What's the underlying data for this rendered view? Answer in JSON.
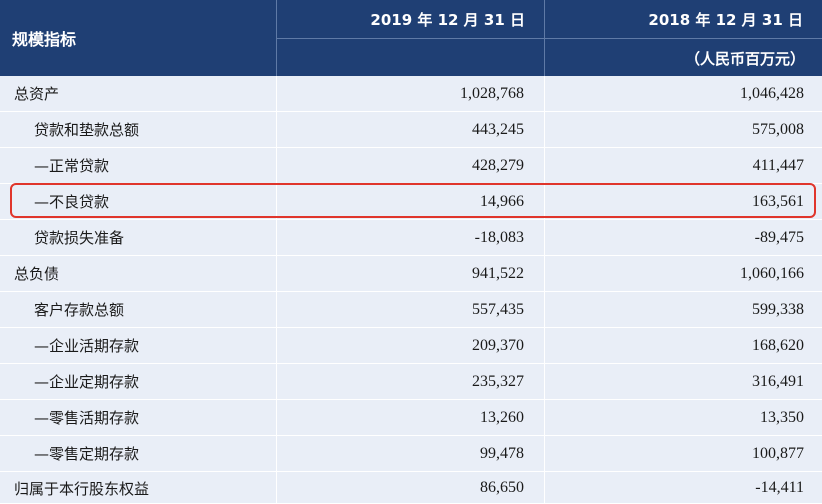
{
  "header": {
    "metric_label": "规模指标",
    "col_2019": "2019 年 12 月 31 日",
    "col_2018": "2018 年 12 月 31 日",
    "unit": "（人民币百万元）"
  },
  "rows": [
    {
      "label": "总资产",
      "v2019": "1,028,768",
      "v2018": "1,046,428"
    },
    {
      "label": "贷款和垫款总额",
      "v2019": "443,245",
      "v2018": "575,008"
    },
    {
      "label": "—正常贷款",
      "v2019": "428,279",
      "v2018": "411,447"
    },
    {
      "label": "—不良贷款",
      "v2019": "14,966",
      "v2018": "163,561"
    },
    {
      "label": "贷款损失准备",
      "v2019": "-18,083",
      "v2018": "-89,475"
    },
    {
      "label": "总负债",
      "v2019": "941,522",
      "v2018": "1,060,166"
    },
    {
      "label": "客户存款总额",
      "v2019": "557,435",
      "v2018": "599,338"
    },
    {
      "label": "—企业活期存款",
      "v2019": "209,370",
      "v2018": "168,620"
    },
    {
      "label": "—企业定期存款",
      "v2019": "235,327",
      "v2018": "316,491"
    },
    {
      "label": "—零售活期存款",
      "v2019": "13,260",
      "v2018": "13,350"
    },
    {
      "label": "—零售定期存款",
      "v2019": "99,478",
      "v2018": "100,877"
    },
    {
      "label": "归属于本行股东权益",
      "v2019": "86,650",
      "v2018": "-14,411"
    }
  ],
  "highlight_color": "#e0352b",
  "header_bg": "#1f3f74"
}
